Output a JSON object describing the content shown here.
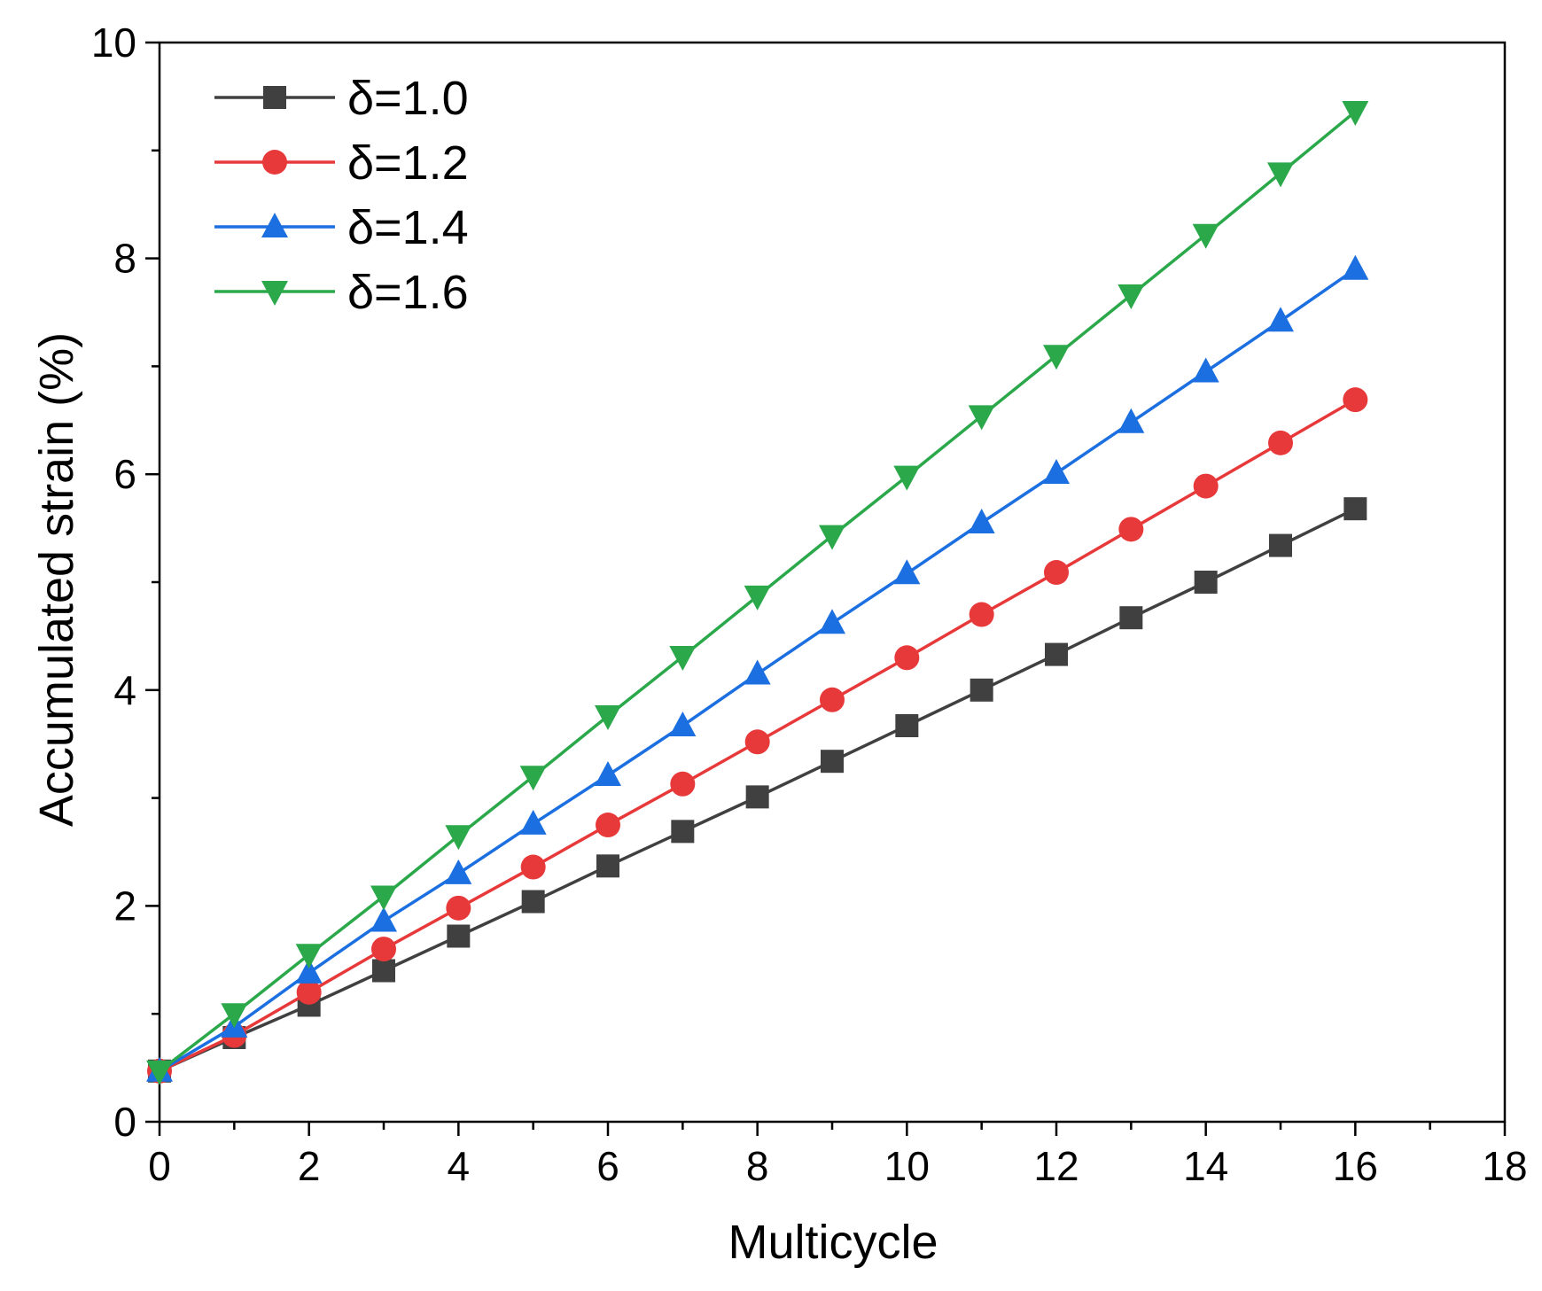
{
  "chart_data": {
    "type": "line",
    "title": "",
    "xlabel": "Multicycle",
    "ylabel": "Accumulated strain (%)",
    "xlim": [
      0,
      18
    ],
    "ylim": [
      0,
      10
    ],
    "xticks": [
      0,
      2,
      4,
      6,
      8,
      10,
      12,
      14,
      16,
      18
    ],
    "yticks": [
      0,
      2,
      4,
      6,
      8,
      10
    ],
    "grid": false,
    "legend_position": "top-left",
    "x": [
      0,
      1,
      2,
      3,
      4,
      5,
      6,
      7,
      8,
      9,
      10,
      11,
      12,
      13,
      14,
      15,
      16
    ],
    "series": [
      {
        "name": "δ=1.0",
        "color": "#404040",
        "marker": "square",
        "values": [
          0.47,
          0.78,
          1.08,
          1.4,
          1.72,
          2.04,
          2.37,
          2.69,
          3.01,
          3.34,
          3.67,
          4.0,
          4.33,
          4.67,
          5.0,
          5.34,
          5.68
        ]
      },
      {
        "name": "δ=1.2",
        "color": "#e8393a",
        "marker": "circle",
        "values": [
          0.47,
          0.8,
          1.2,
          1.6,
          1.98,
          2.36,
          2.75,
          3.13,
          3.52,
          3.91,
          4.3,
          4.7,
          5.09,
          5.49,
          5.89,
          6.29,
          6.69
        ]
      },
      {
        "name": "δ=1.4",
        "color": "#1b6fe0",
        "marker": "triangle-up",
        "values": [
          0.47,
          0.88,
          1.38,
          1.86,
          2.3,
          2.76,
          3.21,
          3.67,
          4.15,
          4.62,
          5.08,
          5.55,
          6.01,
          6.48,
          6.95,
          7.42,
          7.9
        ]
      },
      {
        "name": "δ=1.6",
        "color": "#2aa84a",
        "marker": "triangle-down",
        "values": [
          0.47,
          1.0,
          1.55,
          2.09,
          2.65,
          3.2,
          3.76,
          4.31,
          4.87,
          5.43,
          5.98,
          6.54,
          7.1,
          7.66,
          8.22,
          8.79,
          9.36
        ]
      }
    ]
  }
}
